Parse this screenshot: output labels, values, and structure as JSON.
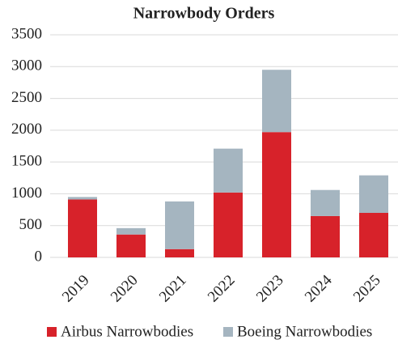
{
  "chart_data": {
    "type": "stacked_bar",
    "title": "Narrowbody Orders",
    "categories": [
      "2019",
      "2020",
      "2021",
      "2022",
      "2023",
      "2024",
      "2025"
    ],
    "series": [
      {
        "name": "Airbus Narrowbodies",
        "color": "#d7222a",
        "values": [
          910,
          360,
          130,
          1020,
          1970,
          650,
          700
        ]
      },
      {
        "name": "Boeing Narrowbodies",
        "color": "#a5b5c0",
        "values": [
          40,
          100,
          750,
          690,
          980,
          410,
          590
        ]
      }
    ],
    "ylim": [
      0,
      3500
    ],
    "yticks": [
      0,
      500,
      1000,
      1500,
      2000,
      2500,
      3000,
      3500
    ],
    "grid": true,
    "legend": "bottom"
  }
}
